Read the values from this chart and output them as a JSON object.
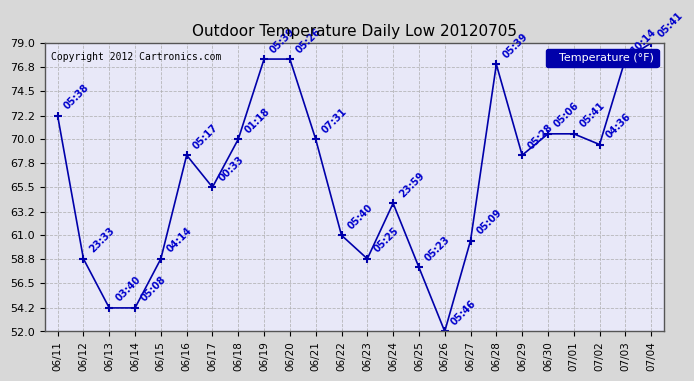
{
  "title": "Outdoor Temperature Daily Low 20120705",
  "copyright": "Copyright 2012 Cartronics.com",
  "legend_label": "Temperature (°F)",
  "background_color": "#d8d8d8",
  "plot_background_color": "#e8e8f8",
  "line_color": "#0000aa",
  "text_color": "#0000cc",
  "dates": [
    "06/11",
    "06/12",
    "06/13",
    "06/14",
    "06/15",
    "06/16",
    "06/17",
    "06/18",
    "06/19",
    "06/20",
    "06/21",
    "06/22",
    "06/23",
    "06/24",
    "06/25",
    "06/26",
    "06/27",
    "06/28",
    "06/29",
    "06/30",
    "07/01",
    "07/02",
    "07/03",
    "07/04"
  ],
  "temps": [
    72.2,
    58.8,
    54.2,
    54.2,
    58.8,
    68.5,
    65.5,
    70.0,
    77.5,
    77.5,
    70.0,
    61.0,
    58.8,
    64.0,
    58.0,
    52.0,
    60.5,
    77.0,
    68.5,
    70.5,
    70.5,
    69.5,
    77.5,
    79.0
  ],
  "time_labels": [
    "05:38",
    "23:33",
    "03:40",
    "05:08",
    "04:14",
    "05:17",
    "00:33",
    "01:18",
    "05:39",
    "05:26",
    "07:31",
    "05:40",
    "05:25",
    "23:59",
    "05:23",
    "05:46",
    "05:09",
    "05:39",
    "05:28",
    "05:06",
    "05:41",
    "04:36",
    "10:14",
    "05:41"
  ],
  "ylim": [
    52.0,
    79.0
  ],
  "yticks": [
    52.0,
    54.2,
    56.5,
    58.8,
    61.0,
    63.2,
    65.5,
    67.8,
    70.0,
    72.2,
    74.5,
    76.8,
    79.0
  ],
  "grid_color": "#aaaaaa",
  "legend_bg": "#0000aa",
  "legend_text": "#ffffff"
}
